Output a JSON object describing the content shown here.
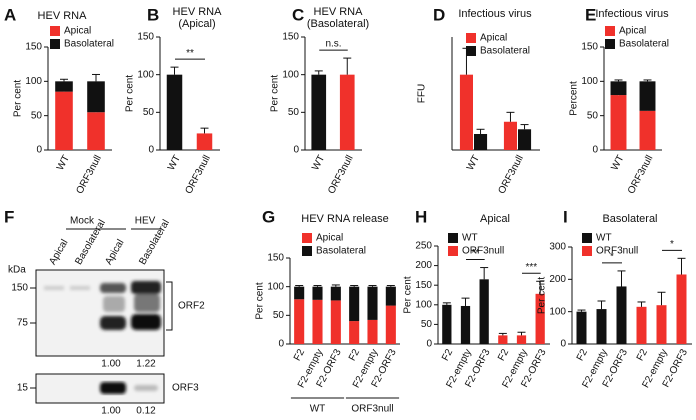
{
  "chart_data": [
    {
      "panel": "A",
      "type": "bar",
      "stacked": true,
      "title": "HEV RNA",
      "ylabel": "Per cent",
      "categories": [
        "WT",
        "ORF3null"
      ],
      "series": [
        {
          "name": "Apical",
          "color": "#f0312b",
          "values": [
            85,
            55
          ],
          "errors": [
            3,
            12
          ]
        },
        {
          "name": "Basolateral",
          "color": "#111111",
          "values": [
            15,
            45
          ],
          "errors": [
            3,
            10
          ]
        }
      ],
      "ylim": [
        0,
        150
      ],
      "yticks": [
        0,
        50,
        100,
        150
      ]
    },
    {
      "panel": "B",
      "type": "bar",
      "stacked": false,
      "title": [
        "HEV RNA",
        "(Apical)"
      ],
      "ylabel": "Per cent",
      "categories": [
        "WT",
        "ORF3null"
      ],
      "series": [
        {
          "colors": [
            "#111111",
            "#f0312b"
          ],
          "values": [
            100,
            22
          ],
          "errors": [
            10,
            7
          ]
        }
      ],
      "ylim": [
        0,
        150
      ],
      "yticks": [
        0,
        50,
        100,
        150
      ],
      "annotations": [
        "**"
      ]
    },
    {
      "panel": "C",
      "type": "bar",
      "stacked": false,
      "title": [
        "HEV RNA",
        "(Basolateral)"
      ],
      "ylabel": "Per cent",
      "categories": [
        "WT",
        "ORF3null"
      ],
      "series": [
        {
          "colors": [
            "#111111",
            "#f0312b"
          ],
          "values": [
            100,
            100
          ],
          "errors": [
            5,
            22
          ]
        }
      ],
      "ylim": [
        0,
        150
      ],
      "yticks": [
        0,
        50,
        100,
        150
      ],
      "annotations": [
        "n.s."
      ]
    },
    {
      "panel": "D",
      "type": "bar",
      "stacked": false,
      "title": "Infectious virus",
      "ylabel": "FFU",
      "categories": [
        "WT",
        "ORF3null"
      ],
      "series": [
        {
          "name": "Apical",
          "color": "#f0312b",
          "values": [
            80,
            30
          ],
          "errors": [
            28,
            10
          ]
        },
        {
          "name": "Basolateral",
          "color": "#111111",
          "values": [
            17,
            22
          ],
          "errors": [
            5,
            5
          ]
        }
      ],
      "ylim": [
        0,
        120
      ]
    },
    {
      "panel": "E",
      "type": "bar",
      "stacked": true,
      "title": "Infectious virus",
      "ylabel": "Percent",
      "categories": [
        "WT",
        "ORF3null"
      ],
      "series": [
        {
          "name": "Apical",
          "color": "#f0312b",
          "values": [
            80,
            57
          ],
          "errors": [
            2,
            3
          ]
        },
        {
          "name": "Basolateral",
          "color": "#111111",
          "values": [
            20,
            43
          ],
          "errors": [
            2,
            2
          ]
        }
      ],
      "ylim": [
        0,
        150
      ],
      "yticks": [
        0,
        50,
        100,
        150
      ]
    },
    {
      "panel": "G",
      "type": "bar",
      "stacked": true,
      "title": "HEV RNA release",
      "ylabel": "Per cent",
      "categories": [
        "F2",
        "F2-empty",
        "F2-ORF3",
        "F2",
        "F2-empty",
        "F2-ORF3"
      ],
      "groups": [
        "WT",
        "ORF3null"
      ],
      "series": [
        {
          "name": "Apical",
          "color": "#f0312b",
          "values": [
            78,
            77,
            76,
            40,
            42,
            67
          ],
          "errors": [
            2,
            2,
            3,
            2,
            2,
            2
          ]
        },
        {
          "name": "Basolateral",
          "color": "#111111",
          "values": [
            22,
            23,
            24,
            60,
            58,
            33
          ],
          "errors": [
            2,
            2,
            3,
            2,
            2,
            2
          ]
        }
      ],
      "ylim": [
        0,
        150
      ],
      "yticks": [
        0,
        50,
        100,
        150
      ]
    },
    {
      "panel": "H",
      "type": "bar",
      "stacked": false,
      "title": "Apical",
      "ylabel": "Per cent",
      "categories": [
        "F2",
        "F2-empty",
        "F2-ORF3",
        "F2",
        "F2-empty",
        "F2-ORF3"
      ],
      "series": [
        {
          "name": "WT",
          "color": "#111111",
          "values": [
            100,
            97,
            165,
            null,
            null,
            null
          ],
          "errors": [
            5,
            20,
            30,
            null,
            null,
            null
          ]
        },
        {
          "name": "ORF3null",
          "color": "#f0312b",
          "values": [
            null,
            null,
            null,
            22,
            22,
            128
          ],
          "errors": [
            null,
            null,
            null,
            5,
            8,
            32
          ]
        }
      ],
      "ylim": [
        0,
        250
      ],
      "yticks": [
        0,
        50,
        100,
        150,
        200,
        250
      ],
      "annotations": [
        "**",
        "***"
      ]
    },
    {
      "panel": "I",
      "type": "bar",
      "stacked": false,
      "title": "Basolateral",
      "ylabel": "Per cent",
      "categories": [
        "F2",
        "F2-empty",
        "F2-ORF3",
        "F2",
        "F2-empty",
        "F2-ORF3"
      ],
      "series": [
        {
          "name": "WT",
          "color": "#111111",
          "values": [
            100,
            108,
            178,
            null,
            null,
            null
          ],
          "errors": [
            5,
            25,
            48,
            null,
            null,
            null
          ]
        },
        {
          "name": "ORF3null",
          "color": "#f0312b",
          "values": [
            null,
            null,
            null,
            115,
            120,
            215
          ],
          "errors": [
            null,
            null,
            null,
            15,
            40,
            50
          ]
        }
      ],
      "ylim": [
        0,
        300
      ],
      "yticks": [
        0,
        100,
        200,
        300
      ],
      "annotations": [
        "*",
        "*"
      ]
    }
  ],
  "blot": {
    "panel": "F",
    "kda_label": "kDa",
    "markers": [
      150,
      75,
      15
    ],
    "lanes": [
      "Apical",
      "Basolateral",
      "Apical",
      "Basolateral"
    ],
    "groups": [
      "Mock",
      "HEV"
    ],
    "bands": [
      "ORF2",
      "ORF3"
    ],
    "orf2_quant": [
      "1.00",
      "1.22"
    ],
    "orf3_quant": [
      "1.00",
      "0.12"
    ]
  }
}
